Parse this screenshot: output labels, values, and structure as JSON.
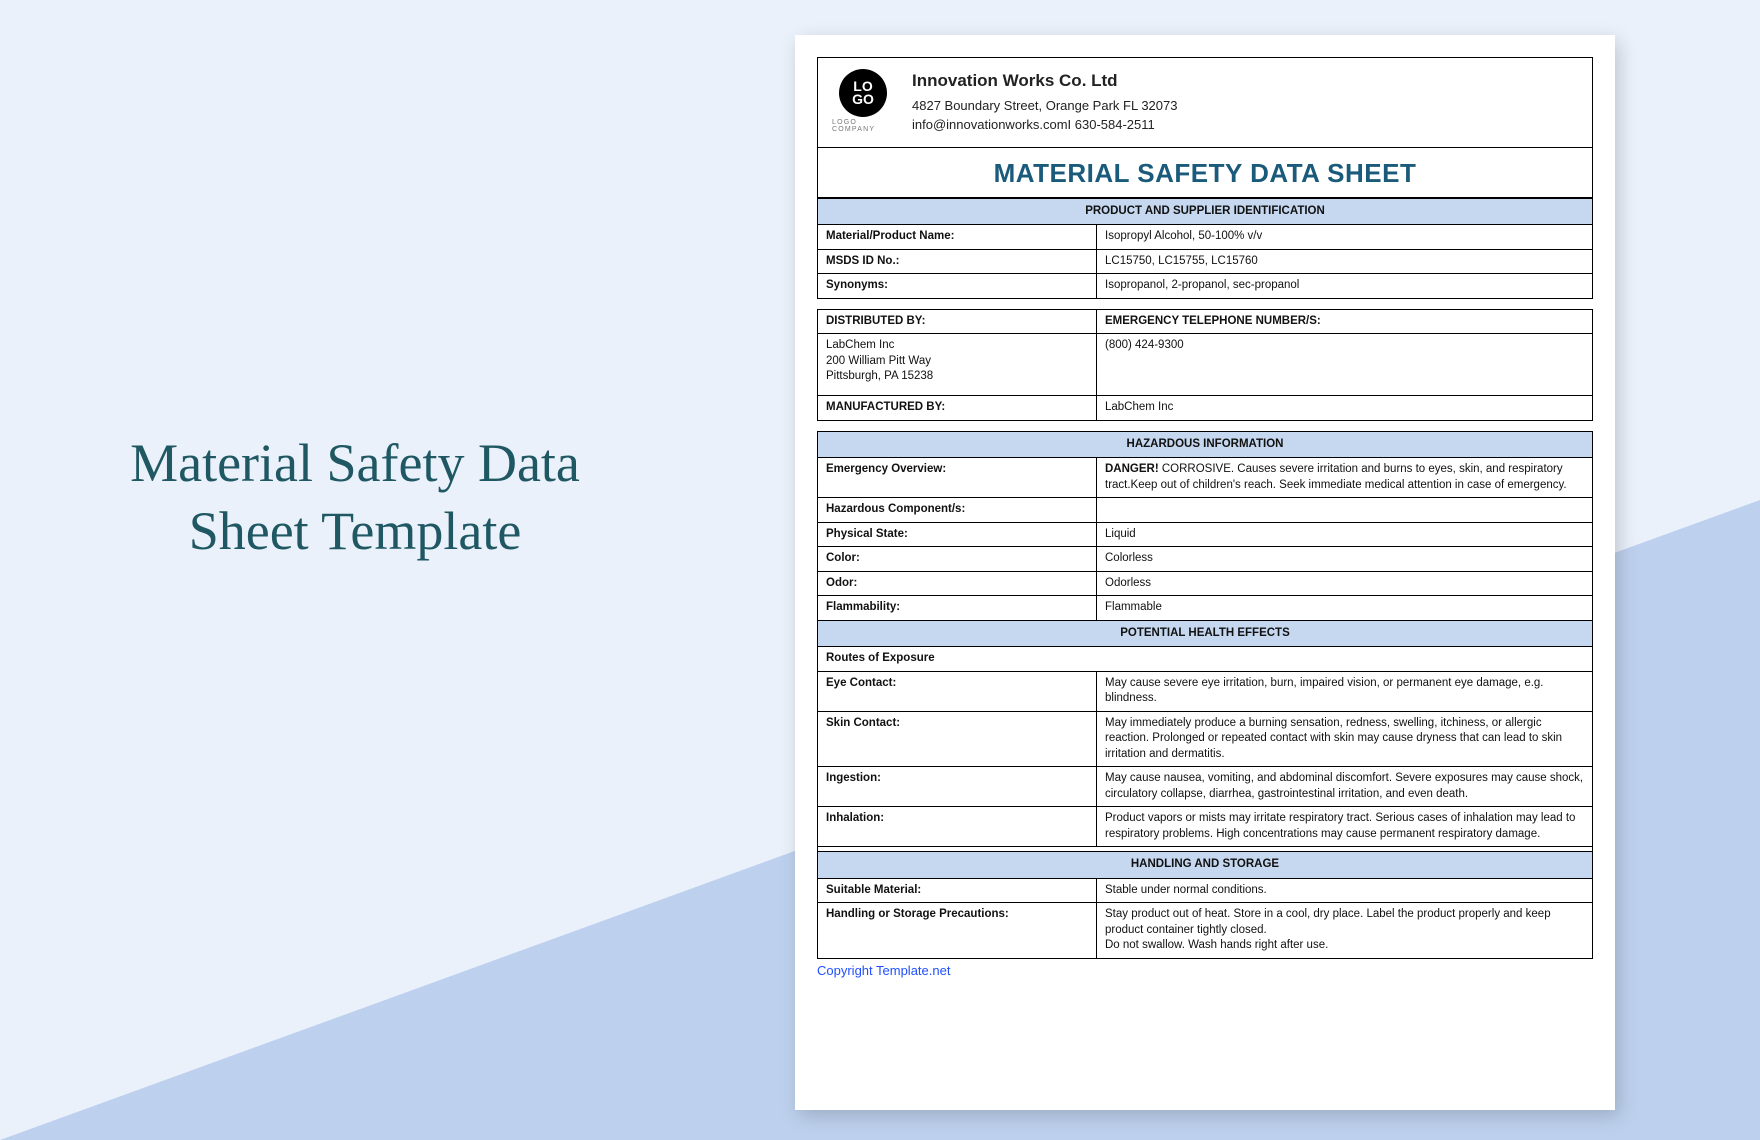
{
  "page_title": "Material Safety Data\nSheet Template",
  "colors": {
    "bg": "#eaf1fb",
    "triangle": "#bdd1ee",
    "title": "#1f5863",
    "doc_title": "#1a5a7a",
    "section_bg": "#c5d8f0",
    "link": "#2050ff"
  },
  "logo": {
    "text": "LO\nGO",
    "sub": "LOGO COMPANY"
  },
  "company": {
    "name": "Innovation Works Co. Ltd",
    "address": "4827 Boundary Street, Orange Park FL 32073",
    "contact": "info@innovationworks.comI 630-584-2511"
  },
  "doc_title": "MATERIAL SAFETY DATA SHEET",
  "s1": {
    "header": "PRODUCT AND SUPPLIER IDENTIFICATION",
    "rows": [
      {
        "l": "Material/Product Name:",
        "v": "Isopropyl Alcohol, 50-100% v/v"
      },
      {
        "l": "MSDS ID No.:",
        "v": "LC15750, LC15755, LC15760"
      },
      {
        "l": "Synonyms:",
        "v": "Isopropanol, 2-propanol, sec-propanol"
      }
    ],
    "dist_label": "DISTRIBUTED BY:",
    "emerg_label": "EMERGENCY TELEPHONE NUMBER/S:",
    "dist_val": "LabChem Inc\n200 William Pitt Way\nPittsburgh, PA 15238",
    "emerg_val": "(800) 424-9300",
    "manu_label": "MANUFACTURED BY:",
    "manu_val": "LabChem Inc"
  },
  "s2": {
    "header": "HAZARDOUS INFORMATION",
    "overview_label": "Emergency Overview:",
    "overview_bold": "DANGER!",
    "overview_text": " CORROSIVE. Causes severe irritation and burns to eyes, skin, and respiratory tract.Keep out of children's reach. Seek immediate medical attention in case of emergency.",
    "rows": [
      {
        "l": "Hazardous Component/s:",
        "v": ""
      },
      {
        "l": "Physical State:",
        "v": "Liquid"
      },
      {
        "l": "Color:",
        "v": "Colorless"
      },
      {
        "l": "Odor:",
        "v": "Odorless"
      },
      {
        "l": "Flammability:",
        "v": "Flammable"
      }
    ]
  },
  "s3": {
    "header": "POTENTIAL HEALTH EFFECTS",
    "routes_label": "Routes of Exposure",
    "rows": [
      {
        "l": "Eye Contact:",
        "v": "May cause severe eye irritation, burn, impaired vision, or permanent eye damage, e.g. blindness."
      },
      {
        "l": "Skin Contact:",
        "v": "May immediately produce a burning sensation, redness, swelling, itchiness, or allergic reaction. Prolonged or repeated contact with skin may cause dryness that can lead to skin irritation and dermatitis."
      },
      {
        "l": "Ingestion:",
        "v": "May cause nausea, vomiting, and abdominal discomfort. Severe exposures may cause shock, circulatory collapse, diarrhea, gastrointestinal irritation, and even death."
      },
      {
        "l": "Inhalation:",
        "v": "Product vapors or mists may irritate respiratory tract. Serious cases of inhalation may lead to respiratory problems. High concentrations may cause permanent respiratory damage."
      }
    ]
  },
  "s4": {
    "header": "HANDLING AND STORAGE",
    "rows": [
      {
        "l": "Suitable Material:",
        "v": "Stable under normal conditions."
      },
      {
        "l": "Handling or Storage Precautions:",
        "v": "Stay product out of heat. Store in a cool, dry place. Label the product properly and keep product container tightly closed.\nDo not swallow. Wash hands right after use."
      }
    ]
  },
  "copyright": "Copyright Template.net"
}
